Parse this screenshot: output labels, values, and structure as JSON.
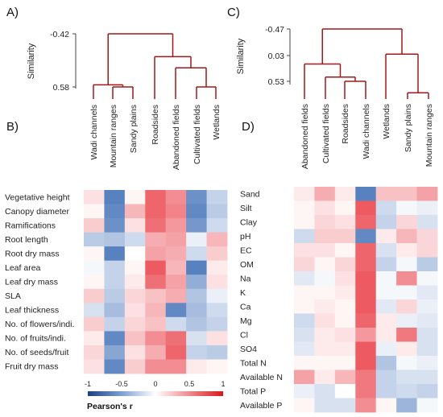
{
  "panels": {
    "A": "A)",
    "B": "B)",
    "C": "C)",
    "D": "D)"
  },
  "colors": {
    "dendrogram": "#a01818",
    "negative": "#3b6bb5",
    "neutral": "#ffffff",
    "positive": "#e8313b"
  },
  "colorbar": {
    "title": "Pearson's r",
    "ticks": [
      "-1",
      "-0.5",
      "0",
      "0.5",
      "1"
    ],
    "range": [
      -1,
      1
    ]
  },
  "chart_data": [
    {
      "type": "dendrogram",
      "panel": "A",
      "ylabel": "Similarity",
      "yticks": [
        "-0.42",
        "0.58"
      ],
      "ylim": [
        -0.42,
        0.58
      ],
      "leaves": [
        "Wadi channels",
        "Mountain ranges",
        "Sandy plains",
        "Roadsides",
        "Abandoned fields",
        "Cultivated fields",
        "Wetlands"
      ],
      "merges": [
        {
          "left": 1,
          "right": 2,
          "height": 0.58
        },
        {
          "left": 0,
          "right": -1,
          "height": 0.54
        },
        {
          "left": 5,
          "right": 6,
          "height": 0.58
        },
        {
          "left": 4,
          "right": -3,
          "height": 0.22
        },
        {
          "left": 3,
          "right": -4,
          "height": 0.01
        },
        {
          "left": -2,
          "right": -5,
          "height": -0.42
        }
      ]
    },
    {
      "type": "dendrogram",
      "panel": "C",
      "ylabel": "Similarity",
      "yticks": [
        "-0.47",
        "0.03",
        "0.53"
      ],
      "ylim": [
        -0.47,
        0.53
      ],
      "leaves": [
        "Abandoned fields",
        "Cultivated fields",
        "Roadsides",
        "Wadi channels",
        "Wetlands",
        "Sandy plains",
        "Mountain ranges"
      ],
      "merges": [
        {
          "left": 2,
          "right": 3,
          "height": 0.53
        },
        {
          "left": 1,
          "right": -1,
          "height": 0.45
        },
        {
          "left": 0,
          "right": -2,
          "height": 0.2
        },
        {
          "left": 5,
          "right": 6,
          "height": 0.75
        },
        {
          "left": 4,
          "right": -4,
          "height": 0.01
        },
        {
          "left": -3,
          "right": -5,
          "height": -0.47
        }
      ]
    },
    {
      "type": "heatmap",
      "panel": "B",
      "columns": [
        "Wadi channels",
        "Mountain ranges",
        "Sandy plains",
        "Roadsides",
        "Abandoned fields",
        "Cultivated fields",
        "Wetlands"
      ],
      "rows": [
        "Vegetative height",
        "Canopy diameter",
        "Ramifications",
        "Root length",
        "Root dry mass",
        "Leaf area",
        "Leaf dry mass",
        "SLA",
        "Leaf thickness",
        "No. of flowers/indi.",
        "No. of fruits/indi.",
        "No. of seeds/fruit",
        "Fruit dry mass"
      ],
      "values": [
        [
          0.15,
          -0.85,
          0.05,
          0.75,
          0.55,
          -0.75,
          -0.3
        ],
        [
          0.05,
          -0.8,
          0.35,
          0.75,
          0.6,
          -0.8,
          -0.35
        ],
        [
          0.25,
          -0.75,
          0.15,
          0.7,
          0.5,
          -0.7,
          -0.25
        ],
        [
          -0.35,
          -0.4,
          -0.25,
          0.4,
          0.45,
          -0.1,
          0.35
        ],
        [
          0.05,
          -0.85,
          0.0,
          0.45,
          0.4,
          -0.25,
          0.25
        ],
        [
          -0.05,
          -0.3,
          0.05,
          0.8,
          0.35,
          -0.85,
          0.1
        ],
        [
          0.05,
          -0.3,
          0.1,
          0.7,
          0.45,
          -0.55,
          0.15
        ],
        [
          0.25,
          -0.35,
          0.2,
          0.3,
          0.4,
          -0.4,
          -0.1
        ],
        [
          -0.2,
          -0.45,
          0.15,
          0.35,
          -0.8,
          -0.45,
          -0.25
        ],
        [
          0.25,
          -0.3,
          0.2,
          0.3,
          -0.25,
          -0.4,
          -0.3
        ],
        [
          0.1,
          -0.8,
          0.3,
          0.55,
          0.7,
          -0.2,
          0.15
        ],
        [
          0.2,
          -0.6,
          0.15,
          0.4,
          0.75,
          -0.3,
          -0.35
        ],
        [
          0.15,
          -0.8,
          0.25,
          0.55,
          0.55,
          0.1,
          0.05
        ]
      ]
    },
    {
      "type": "heatmap",
      "panel": "D",
      "columns": [
        "Abandoned fields",
        "Cultivated fields",
        "Roadsides",
        "Wadi channels",
        "Wetlands",
        "Sandy plains",
        "Mountain ranges"
      ],
      "rows": [
        "Sand",
        "Silt",
        "Clay",
        "pH",
        "EC",
        "OM",
        "Na",
        "K",
        "Ca",
        "Mg",
        "Cl",
        "SO4",
        "Total N",
        "Available N",
        "Total P",
        "Available P"
      ],
      "values": [
        [
          0.1,
          0.4,
          0.1,
          -0.85,
          0.3,
          0.3,
          0.45
        ],
        [
          0.05,
          0.15,
          0.05,
          0.8,
          -0.25,
          -0.05,
          -0.1
        ],
        [
          0.05,
          0.2,
          0.15,
          0.75,
          -0.3,
          0.2,
          -0.2
        ],
        [
          -0.25,
          0.25,
          0.25,
          -0.8,
          0.1,
          0.35,
          0.2
        ],
        [
          0.15,
          0.15,
          0.05,
          0.75,
          -0.2,
          0.1,
          0.2
        ],
        [
          0.2,
          0.05,
          0.2,
          0.75,
          -0.3,
          -0.05,
          -0.35
        ],
        [
          -0.15,
          -0.05,
          0.15,
          0.8,
          -0.05,
          0.55,
          -0.05
        ],
        [
          0.05,
          0.05,
          0.1,
          0.8,
          -0.05,
          -0.05,
          -0.15
        ],
        [
          0.05,
          0.1,
          0.05,
          0.8,
          -0.15,
          0.2,
          -0.1
        ],
        [
          -0.25,
          0.15,
          0.05,
          0.75,
          0.1,
          -0.1,
          -0.15
        ],
        [
          -0.2,
          0.1,
          0.15,
          0.5,
          0.1,
          0.65,
          -0.2
        ],
        [
          -0.15,
          0.1,
          0.1,
          0.8,
          -0.1,
          0.1,
          -0.2
        ],
        [
          0.05,
          0.05,
          0.05,
          0.8,
          -0.4,
          -0.05,
          -0.1
        ],
        [
          0.45,
          0.1,
          0.35,
          0.65,
          -0.3,
          -0.2,
          -0.2
        ],
        [
          -0.1,
          -0.2,
          0.0,
          0.65,
          -0.3,
          -0.25,
          -0.3
        ],
        [
          0.05,
          -0.2,
          -0.2,
          0.55,
          0.05,
          -0.5,
          -0.05
        ]
      ]
    }
  ]
}
